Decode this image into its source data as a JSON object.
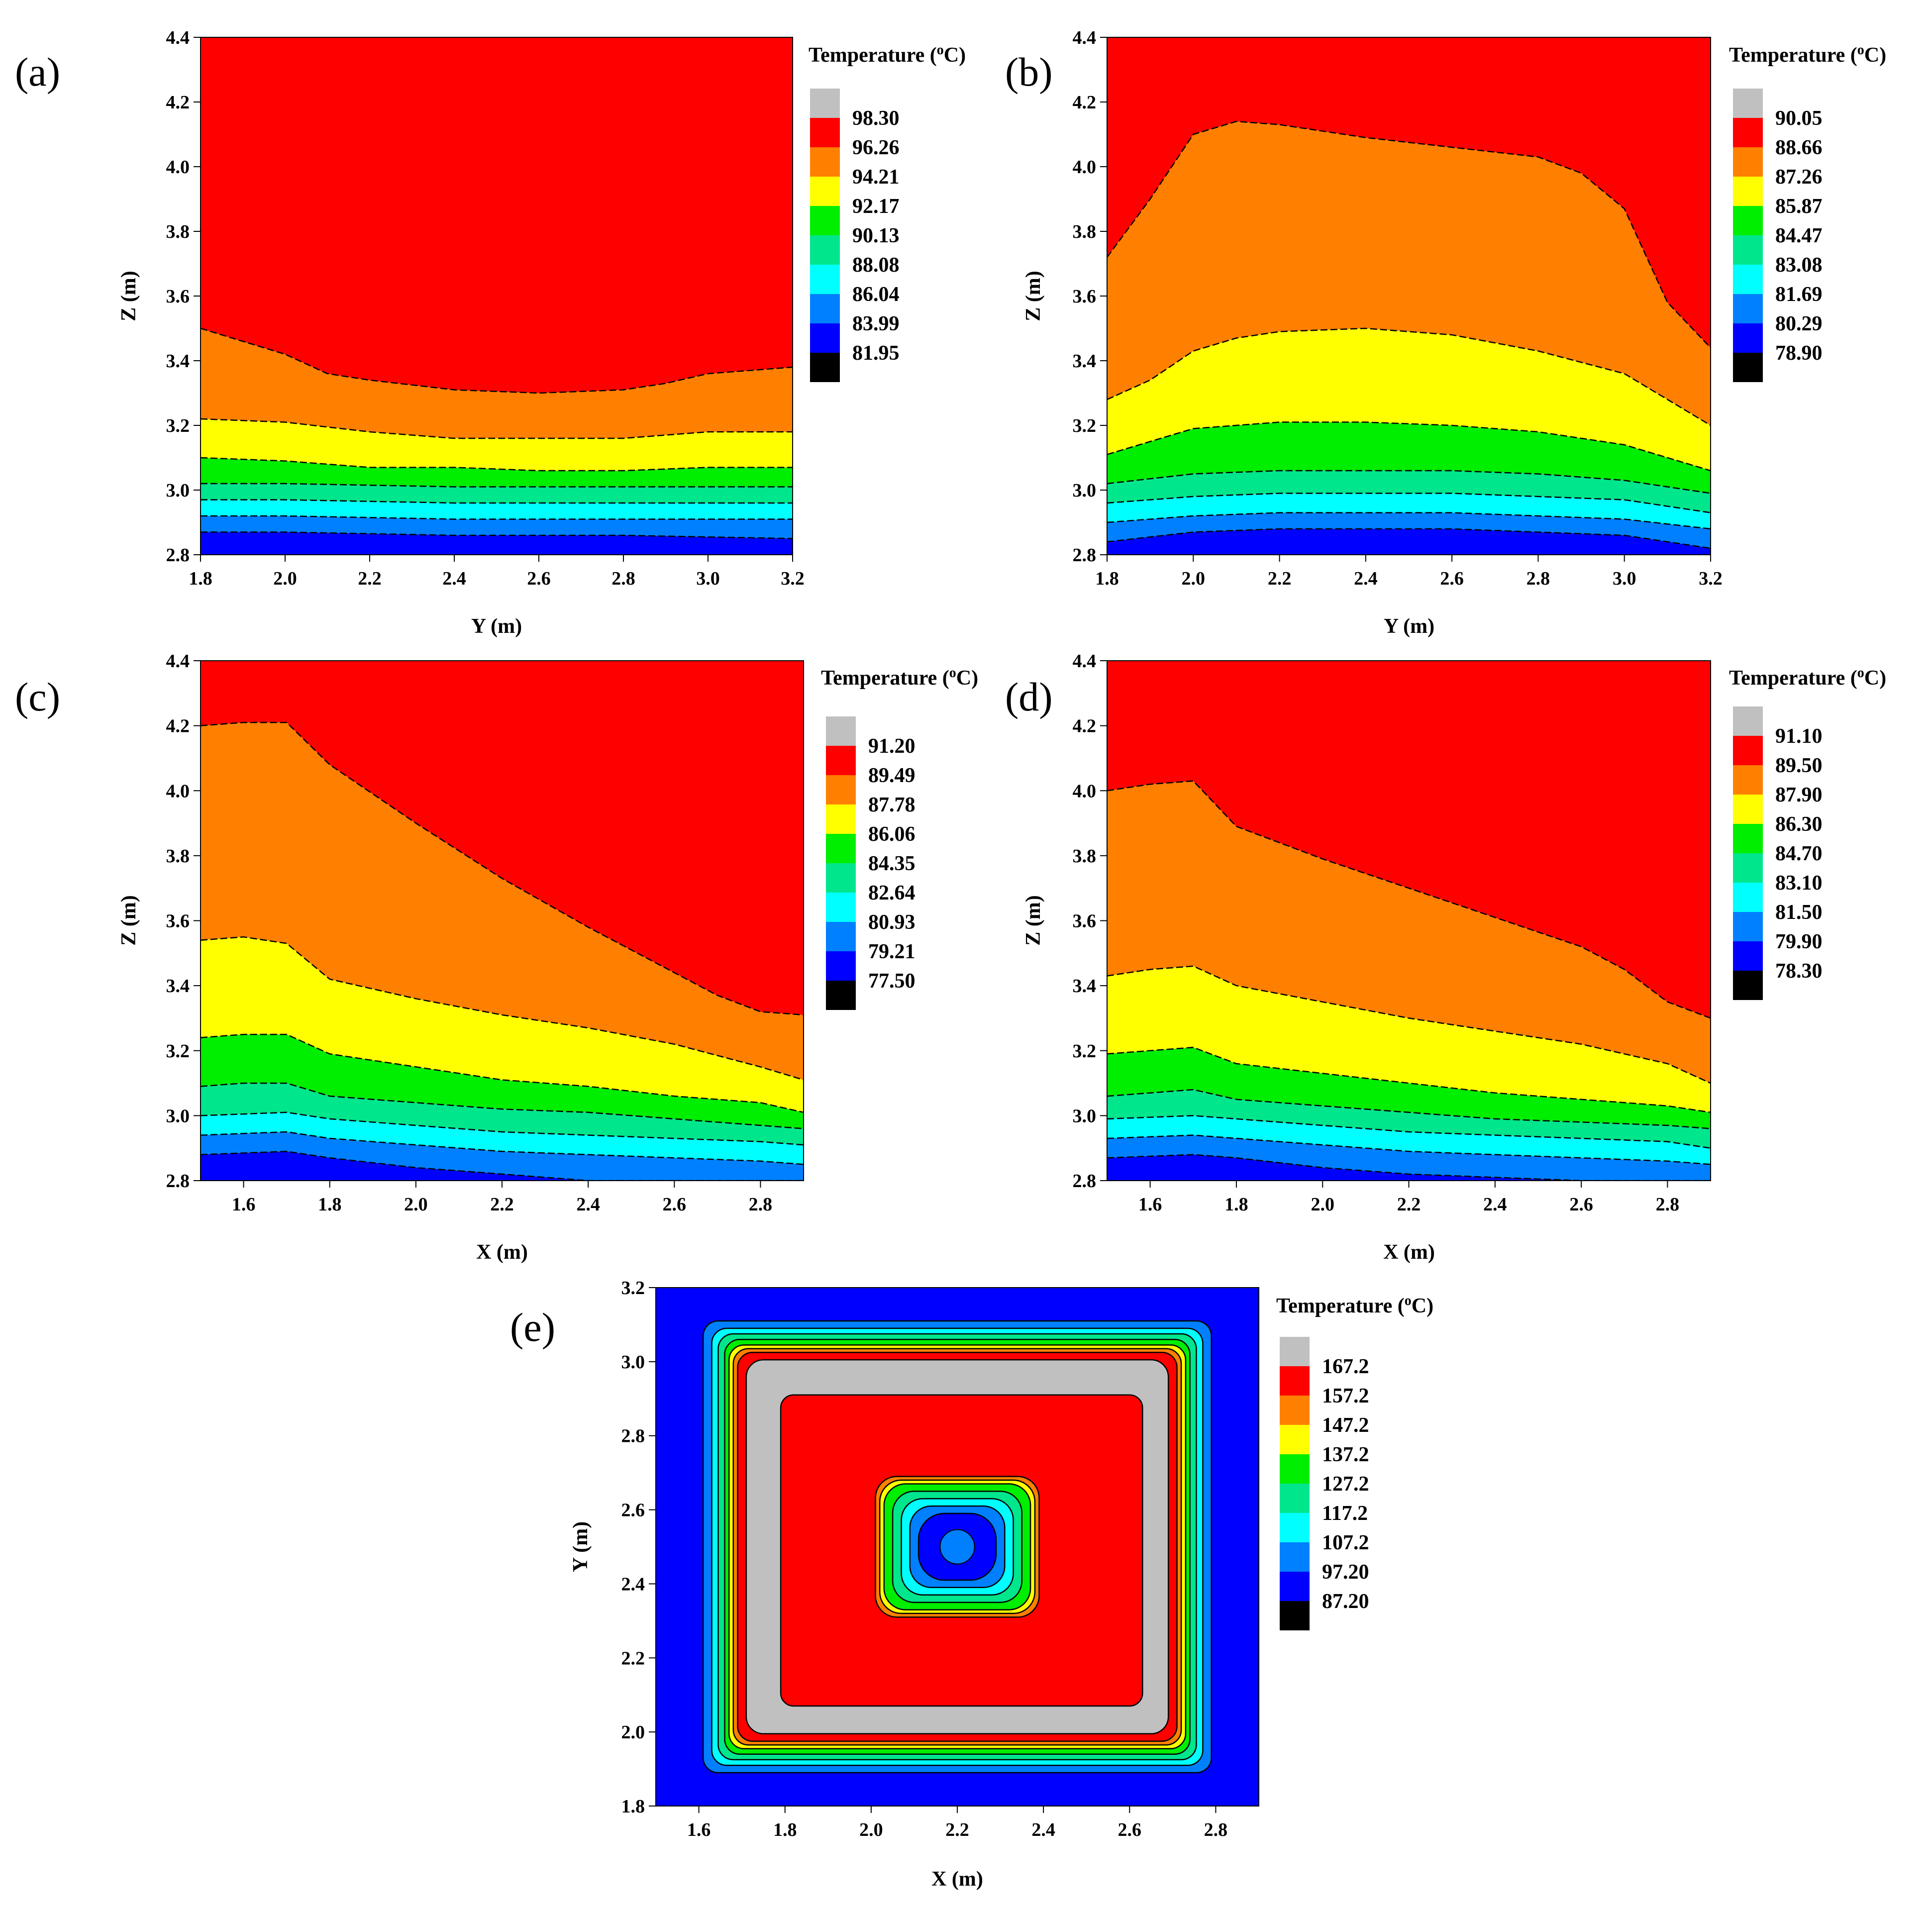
{
  "figure": {
    "legend_title_text": "Temperature (",
    "legend_title_sup": "o",
    "legend_title_unit": "C)"
  },
  "chart_data": [
    {
      "panel": "(a)",
      "type": "contour",
      "xlabel": "Y (m)",
      "ylabel": "Z (m)",
      "xlim": [
        1.8,
        3.2
      ],
      "ylim": [
        2.8,
        4.4
      ],
      "xticks": [
        "1.8",
        "2.0",
        "2.2",
        "2.4",
        "2.6",
        "2.8",
        "3.0",
        "3.2"
      ],
      "yticks": [
        "2.8",
        "3.0",
        "3.2",
        "3.4",
        "3.6",
        "3.8",
        "4.0",
        "4.2",
        "4.4"
      ],
      "legend_title": "Temperature (°C)",
      "legend_levels": [
        "98.30",
        "96.26",
        "94.21",
        "92.17",
        "90.13",
        "88.08",
        "86.04",
        "83.99",
        "81.95"
      ],
      "region_colors": [
        "#ff0000",
        "#ff8000",
        "#ffff00",
        "#00ee00",
        "#00e68c",
        "#00ffff",
        "#0080ff",
        "#0000ff"
      ],
      "boundaries": [
        {
          "x": [
            1.8,
            1.9,
            2.0,
            2.1,
            2.2,
            2.4,
            2.6,
            2.8,
            2.9,
            3.0,
            3.1,
            3.2
          ],
          "z": [
            3.5,
            3.46,
            3.42,
            3.36,
            3.34,
            3.31,
            3.3,
            3.31,
            3.33,
            3.36,
            3.37,
            3.38
          ]
        },
        {
          "x": [
            1.8,
            2.0,
            2.2,
            2.4,
            2.6,
            2.8,
            3.0,
            3.2
          ],
          "z": [
            3.22,
            3.21,
            3.18,
            3.16,
            3.16,
            3.16,
            3.18,
            3.18
          ]
        },
        {
          "x": [
            1.8,
            2.0,
            2.2,
            2.4,
            2.6,
            2.8,
            3.0,
            3.2
          ],
          "z": [
            3.1,
            3.09,
            3.07,
            3.07,
            3.06,
            3.06,
            3.07,
            3.07
          ]
        },
        {
          "x": [
            1.8,
            2.0,
            2.4,
            2.8,
            3.2
          ],
          "z": [
            3.02,
            3.02,
            3.01,
            3.01,
            3.01
          ]
        },
        {
          "x": [
            1.8,
            2.0,
            2.4,
            2.8,
            3.2
          ],
          "z": [
            2.97,
            2.97,
            2.96,
            2.96,
            2.96
          ]
        },
        {
          "x": [
            1.8,
            2.0,
            2.4,
            2.8,
            3.2
          ],
          "z": [
            2.92,
            2.92,
            2.91,
            2.91,
            2.91
          ]
        },
        {
          "x": [
            1.8,
            2.0,
            2.4,
            2.8,
            3.2
          ],
          "z": [
            2.87,
            2.87,
            2.86,
            2.86,
            2.85
          ]
        }
      ]
    },
    {
      "panel": "(b)",
      "type": "contour",
      "xlabel": "Y (m)",
      "ylabel": "Z (m)",
      "xlim": [
        1.8,
        3.2
      ],
      "ylim": [
        2.8,
        4.4
      ],
      "xticks": [
        "1.8",
        "2.0",
        "2.2",
        "2.4",
        "2.6",
        "2.8",
        "3.0",
        "3.2"
      ],
      "yticks": [
        "2.8",
        "3.0",
        "3.2",
        "3.4",
        "3.6",
        "3.8",
        "4.0",
        "4.2",
        "4.4"
      ],
      "legend_title": "Temperature (°C)",
      "legend_levels": [
        "90.05",
        "88.66",
        "87.26",
        "85.87",
        "84.47",
        "83.08",
        "81.69",
        "80.29",
        "78.90"
      ],
      "region_colors": [
        "#ff0000",
        "#ff8000",
        "#ffff00",
        "#00ee00",
        "#00e68c",
        "#00ffff",
        "#0080ff",
        "#0000ff"
      ],
      "boundaries": [
        {
          "x": [
            1.8,
            1.9,
            2.0,
            2.1,
            2.2,
            2.4,
            2.6,
            2.8,
            2.9,
            3.0,
            3.1,
            3.2
          ],
          "z": [
            3.72,
            3.9,
            4.1,
            4.14,
            4.13,
            4.09,
            4.06,
            4.03,
            3.98,
            3.87,
            3.58,
            3.44
          ]
        },
        {
          "x": [
            1.8,
            1.9,
            2.0,
            2.1,
            2.2,
            2.4,
            2.6,
            2.8,
            3.0,
            3.1,
            3.2
          ],
          "z": [
            3.28,
            3.34,
            3.43,
            3.47,
            3.49,
            3.5,
            3.48,
            3.43,
            3.36,
            3.28,
            3.2
          ]
        },
        {
          "x": [
            1.8,
            1.9,
            2.0,
            2.2,
            2.4,
            2.6,
            2.8,
            3.0,
            3.1,
            3.2
          ],
          "z": [
            3.11,
            3.15,
            3.19,
            3.21,
            3.21,
            3.2,
            3.18,
            3.14,
            3.1,
            3.06
          ]
        },
        {
          "x": [
            1.8,
            2.0,
            2.2,
            2.4,
            2.6,
            2.8,
            3.0,
            3.2
          ],
          "z": [
            3.02,
            3.05,
            3.06,
            3.06,
            3.06,
            3.05,
            3.03,
            2.99
          ]
        },
        {
          "x": [
            1.8,
            2.0,
            2.2,
            2.4,
            2.6,
            2.8,
            3.0,
            3.2
          ],
          "z": [
            2.96,
            2.98,
            2.99,
            2.99,
            2.99,
            2.98,
            2.97,
            2.93
          ]
        },
        {
          "x": [
            1.8,
            2.0,
            2.2,
            2.4,
            2.6,
            2.8,
            3.0,
            3.2
          ],
          "z": [
            2.9,
            2.92,
            2.93,
            2.93,
            2.93,
            2.92,
            2.91,
            2.88
          ]
        },
        {
          "x": [
            1.8,
            2.0,
            2.2,
            2.4,
            2.6,
            2.8,
            3.0,
            3.2
          ],
          "z": [
            2.84,
            2.87,
            2.88,
            2.88,
            2.88,
            2.87,
            2.86,
            2.82
          ]
        }
      ]
    },
    {
      "panel": "(c)",
      "type": "contour",
      "xlabel": "X (m)",
      "ylabel": "Z (m)",
      "xlim": [
        1.5,
        2.9
      ],
      "ylim": [
        2.8,
        4.4
      ],
      "xticks": [
        "1.6",
        "1.8",
        "2.0",
        "2.2",
        "2.4",
        "2.6",
        "2.8"
      ],
      "yticks": [
        "2.8",
        "3.0",
        "3.2",
        "3.4",
        "3.6",
        "3.8",
        "4.0",
        "4.2",
        "4.4"
      ],
      "legend_title": "Temperature (°C)",
      "legend_levels": [
        "91.20",
        "89.49",
        "87.78",
        "86.06",
        "84.35",
        "82.64",
        "80.93",
        "79.21",
        "77.50"
      ],
      "region_colors": [
        "#ff0000",
        "#ff8000",
        "#ffff00",
        "#00ee00",
        "#00e68c",
        "#00ffff",
        "#0080ff",
        "#0000ff"
      ],
      "boundaries": [
        {
          "x": [
            1.5,
            1.6,
            1.7,
            1.8,
            2.0,
            2.2,
            2.4,
            2.6,
            2.7,
            2.8,
            2.9
          ],
          "z": [
            4.2,
            4.21,
            4.21,
            4.08,
            3.9,
            3.73,
            3.58,
            3.44,
            3.37,
            3.32,
            3.31
          ]
        },
        {
          "x": [
            1.5,
            1.6,
            1.7,
            1.8,
            2.0,
            2.2,
            2.4,
            2.6,
            2.8,
            2.9
          ],
          "z": [
            3.54,
            3.55,
            3.53,
            3.42,
            3.36,
            3.31,
            3.27,
            3.22,
            3.15,
            3.11
          ]
        },
        {
          "x": [
            1.5,
            1.6,
            1.7,
            1.8,
            2.0,
            2.2,
            2.4,
            2.6,
            2.8,
            2.9
          ],
          "z": [
            3.24,
            3.25,
            3.25,
            3.19,
            3.15,
            3.11,
            3.09,
            3.06,
            3.04,
            3.01
          ]
        },
        {
          "x": [
            1.5,
            1.6,
            1.7,
            1.8,
            2.0,
            2.2,
            2.4,
            2.6,
            2.8,
            2.9
          ],
          "z": [
            3.09,
            3.1,
            3.1,
            3.06,
            3.04,
            3.02,
            3.01,
            2.99,
            2.97,
            2.96
          ]
        },
        {
          "x": [
            1.5,
            1.7,
            1.8,
            2.0,
            2.2,
            2.4,
            2.6,
            2.8,
            2.9
          ],
          "z": [
            3.0,
            3.01,
            2.99,
            2.97,
            2.95,
            2.94,
            2.93,
            2.92,
            2.91
          ]
        },
        {
          "x": [
            1.5,
            1.7,
            1.8,
            2.0,
            2.2,
            2.4,
            2.6,
            2.8,
            2.9
          ],
          "z": [
            2.94,
            2.95,
            2.93,
            2.91,
            2.89,
            2.88,
            2.87,
            2.86,
            2.85
          ]
        },
        {
          "x": [
            1.5,
            1.7,
            1.8,
            2.0,
            2.2,
            2.4,
            2.6,
            2.8,
            2.9
          ],
          "z": [
            2.88,
            2.89,
            2.87,
            2.84,
            2.82,
            2.8,
            2.8,
            2.8,
            2.8
          ]
        }
      ]
    },
    {
      "panel": "(d)",
      "type": "contour",
      "xlabel": "X (m)",
      "ylabel": "Z (m)",
      "xlim": [
        1.5,
        2.9
      ],
      "ylim": [
        2.8,
        4.4
      ],
      "xticks": [
        "1.6",
        "1.8",
        "2.0",
        "2.2",
        "2.4",
        "2.6",
        "2.8"
      ],
      "yticks": [
        "2.8",
        "3.0",
        "3.2",
        "3.4",
        "3.6",
        "3.8",
        "4.0",
        "4.2",
        "4.4"
      ],
      "legend_title": "Temperature (°C)",
      "legend_levels": [
        "91.10",
        "89.50",
        "87.90",
        "86.30",
        "84.70",
        "83.10",
        "81.50",
        "79.90",
        "78.30"
      ],
      "region_colors": [
        "#ff0000",
        "#ff8000",
        "#ffff00",
        "#00ee00",
        "#00e68c",
        "#00ffff",
        "#0080ff",
        "#0000ff"
      ],
      "boundaries": [
        {
          "x": [
            1.5,
            1.6,
            1.7,
            1.8,
            2.0,
            2.2,
            2.4,
            2.6,
            2.7,
            2.8,
            2.9
          ],
          "z": [
            4.0,
            4.02,
            4.03,
            3.89,
            3.79,
            3.7,
            3.61,
            3.52,
            3.45,
            3.35,
            3.3
          ]
        },
        {
          "x": [
            1.5,
            1.6,
            1.7,
            1.8,
            2.0,
            2.2,
            2.4,
            2.6,
            2.8,
            2.9
          ],
          "z": [
            3.43,
            3.45,
            3.46,
            3.4,
            3.35,
            3.3,
            3.26,
            3.22,
            3.16,
            3.1
          ]
        },
        {
          "x": [
            1.5,
            1.6,
            1.7,
            1.8,
            2.0,
            2.2,
            2.4,
            2.6,
            2.8,
            2.9
          ],
          "z": [
            3.19,
            3.2,
            3.21,
            3.16,
            3.13,
            3.1,
            3.07,
            3.05,
            3.03,
            3.01
          ]
        },
        {
          "x": [
            1.5,
            1.6,
            1.7,
            1.8,
            2.0,
            2.2,
            2.4,
            2.6,
            2.8,
            2.9
          ],
          "z": [
            3.06,
            3.07,
            3.08,
            3.05,
            3.03,
            3.01,
            2.99,
            2.98,
            2.97,
            2.96
          ]
        },
        {
          "x": [
            1.5,
            1.7,
            1.8,
            2.0,
            2.2,
            2.4,
            2.6,
            2.8,
            2.9
          ],
          "z": [
            2.99,
            3.0,
            2.99,
            2.97,
            2.95,
            2.94,
            2.93,
            2.92,
            2.9
          ]
        },
        {
          "x": [
            1.5,
            1.7,
            1.8,
            2.0,
            2.2,
            2.4,
            2.6,
            2.8,
            2.9
          ],
          "z": [
            2.93,
            2.94,
            2.93,
            2.91,
            2.89,
            2.88,
            2.87,
            2.86,
            2.85
          ]
        },
        {
          "x": [
            1.5,
            1.7,
            1.8,
            2.0,
            2.2,
            2.4,
            2.6,
            2.8,
            2.9
          ],
          "z": [
            2.87,
            2.88,
            2.87,
            2.84,
            2.82,
            2.81,
            2.8,
            2.8,
            2.8
          ]
        }
      ]
    },
    {
      "panel": "(e)",
      "type": "contour",
      "xlabel": "X (m)",
      "ylabel": "Y (m)",
      "xlim": [
        1.5,
        2.9
      ],
      "ylim": [
        1.8,
        3.2
      ],
      "xticks": [
        "1.6",
        "1.8",
        "2.0",
        "2.2",
        "2.4",
        "2.6",
        "2.8"
      ],
      "yticks": [
        "1.8",
        "2.0",
        "2.2",
        "2.4",
        "2.6",
        "2.8",
        "3.0",
        "3.2"
      ],
      "legend_title": "Temperature (°C)",
      "legend_levels": [
        "167.2",
        "157.2",
        "147.2",
        "137.2",
        "127.2",
        "117.2",
        "107.2",
        "97.20",
        "87.20"
      ],
      "region_colors": [
        "#ff0000",
        "#ff8000",
        "#ffff00",
        "#00ee00",
        "#00e68c",
        "#00ffff",
        "#0080ff",
        "#0000ff"
      ],
      "background_color": "#0000ff",
      "rings": [
        {
          "x": [
            1.61,
            2.79
          ],
          "y": [
            1.89,
            3.11
          ],
          "r": 0.035,
          "color": "#0080ff"
        },
        {
          "x": [
            1.63,
            2.77
          ],
          "y": [
            1.91,
            3.09
          ],
          "r": 0.035,
          "color": "#00ffff"
        },
        {
          "x": [
            1.645,
            2.755
          ],
          "y": [
            1.925,
            3.075
          ],
          "r": 0.035,
          "color": "#00e68c"
        },
        {
          "x": [
            1.66,
            2.74
          ],
          "y": [
            1.94,
            3.06
          ],
          "r": 0.035,
          "color": "#00ee00"
        },
        {
          "x": [
            1.67,
            2.73
          ],
          "y": [
            1.955,
            3.045
          ],
          "r": 0.035,
          "color": "#ffff00"
        },
        {
          "x": [
            1.68,
            2.72
          ],
          "y": [
            1.965,
            3.035
          ],
          "r": 0.035,
          "color": "#ff8000"
        },
        {
          "x": [
            1.69,
            2.71
          ],
          "y": [
            1.975,
            3.025
          ],
          "r": 0.035,
          "color": "#ff0000"
        },
        {
          "x": [
            1.71,
            2.69
          ],
          "y": [
            1.995,
            3.005
          ],
          "r": 0.04,
          "color": "#c0c0c0"
        },
        {
          "x": [
            1.79,
            2.63
          ],
          "y": [
            2.07,
            2.91
          ],
          "r": 0.03,
          "color": "#ff0000"
        },
        {
          "x": [
            2.01,
            2.39
          ],
          "y": [
            2.31,
            2.69
          ],
          "r": 0.05,
          "color": "#ff8000"
        },
        {
          "x": [
            2.02,
            2.38
          ],
          "y": [
            2.32,
            2.68
          ],
          "r": 0.05,
          "color": "#ffff00"
        },
        {
          "x": [
            2.03,
            2.37
          ],
          "y": [
            2.33,
            2.67
          ],
          "r": 0.05,
          "color": "#00ee00"
        },
        {
          "x": [
            2.05,
            2.35
          ],
          "y": [
            2.35,
            2.65
          ],
          "r": 0.05,
          "color": "#00e68c"
        },
        {
          "x": [
            2.07,
            2.33
          ],
          "y": [
            2.37,
            2.63
          ],
          "r": 0.05,
          "color": "#00ffff"
        },
        {
          "x": [
            2.09,
            2.31
          ],
          "y": [
            2.39,
            2.61
          ],
          "r": 0.05,
          "color": "#0080ff"
        },
        {
          "x": [
            2.11,
            2.29
          ],
          "y": [
            2.41,
            2.59
          ],
          "r": 0.06,
          "color": "#0000ff"
        }
      ],
      "center_spot": {
        "x": 2.2,
        "y": 2.5,
        "rx": 0.04,
        "ry": 0.04,
        "color": "#0080ff"
      }
    }
  ]
}
